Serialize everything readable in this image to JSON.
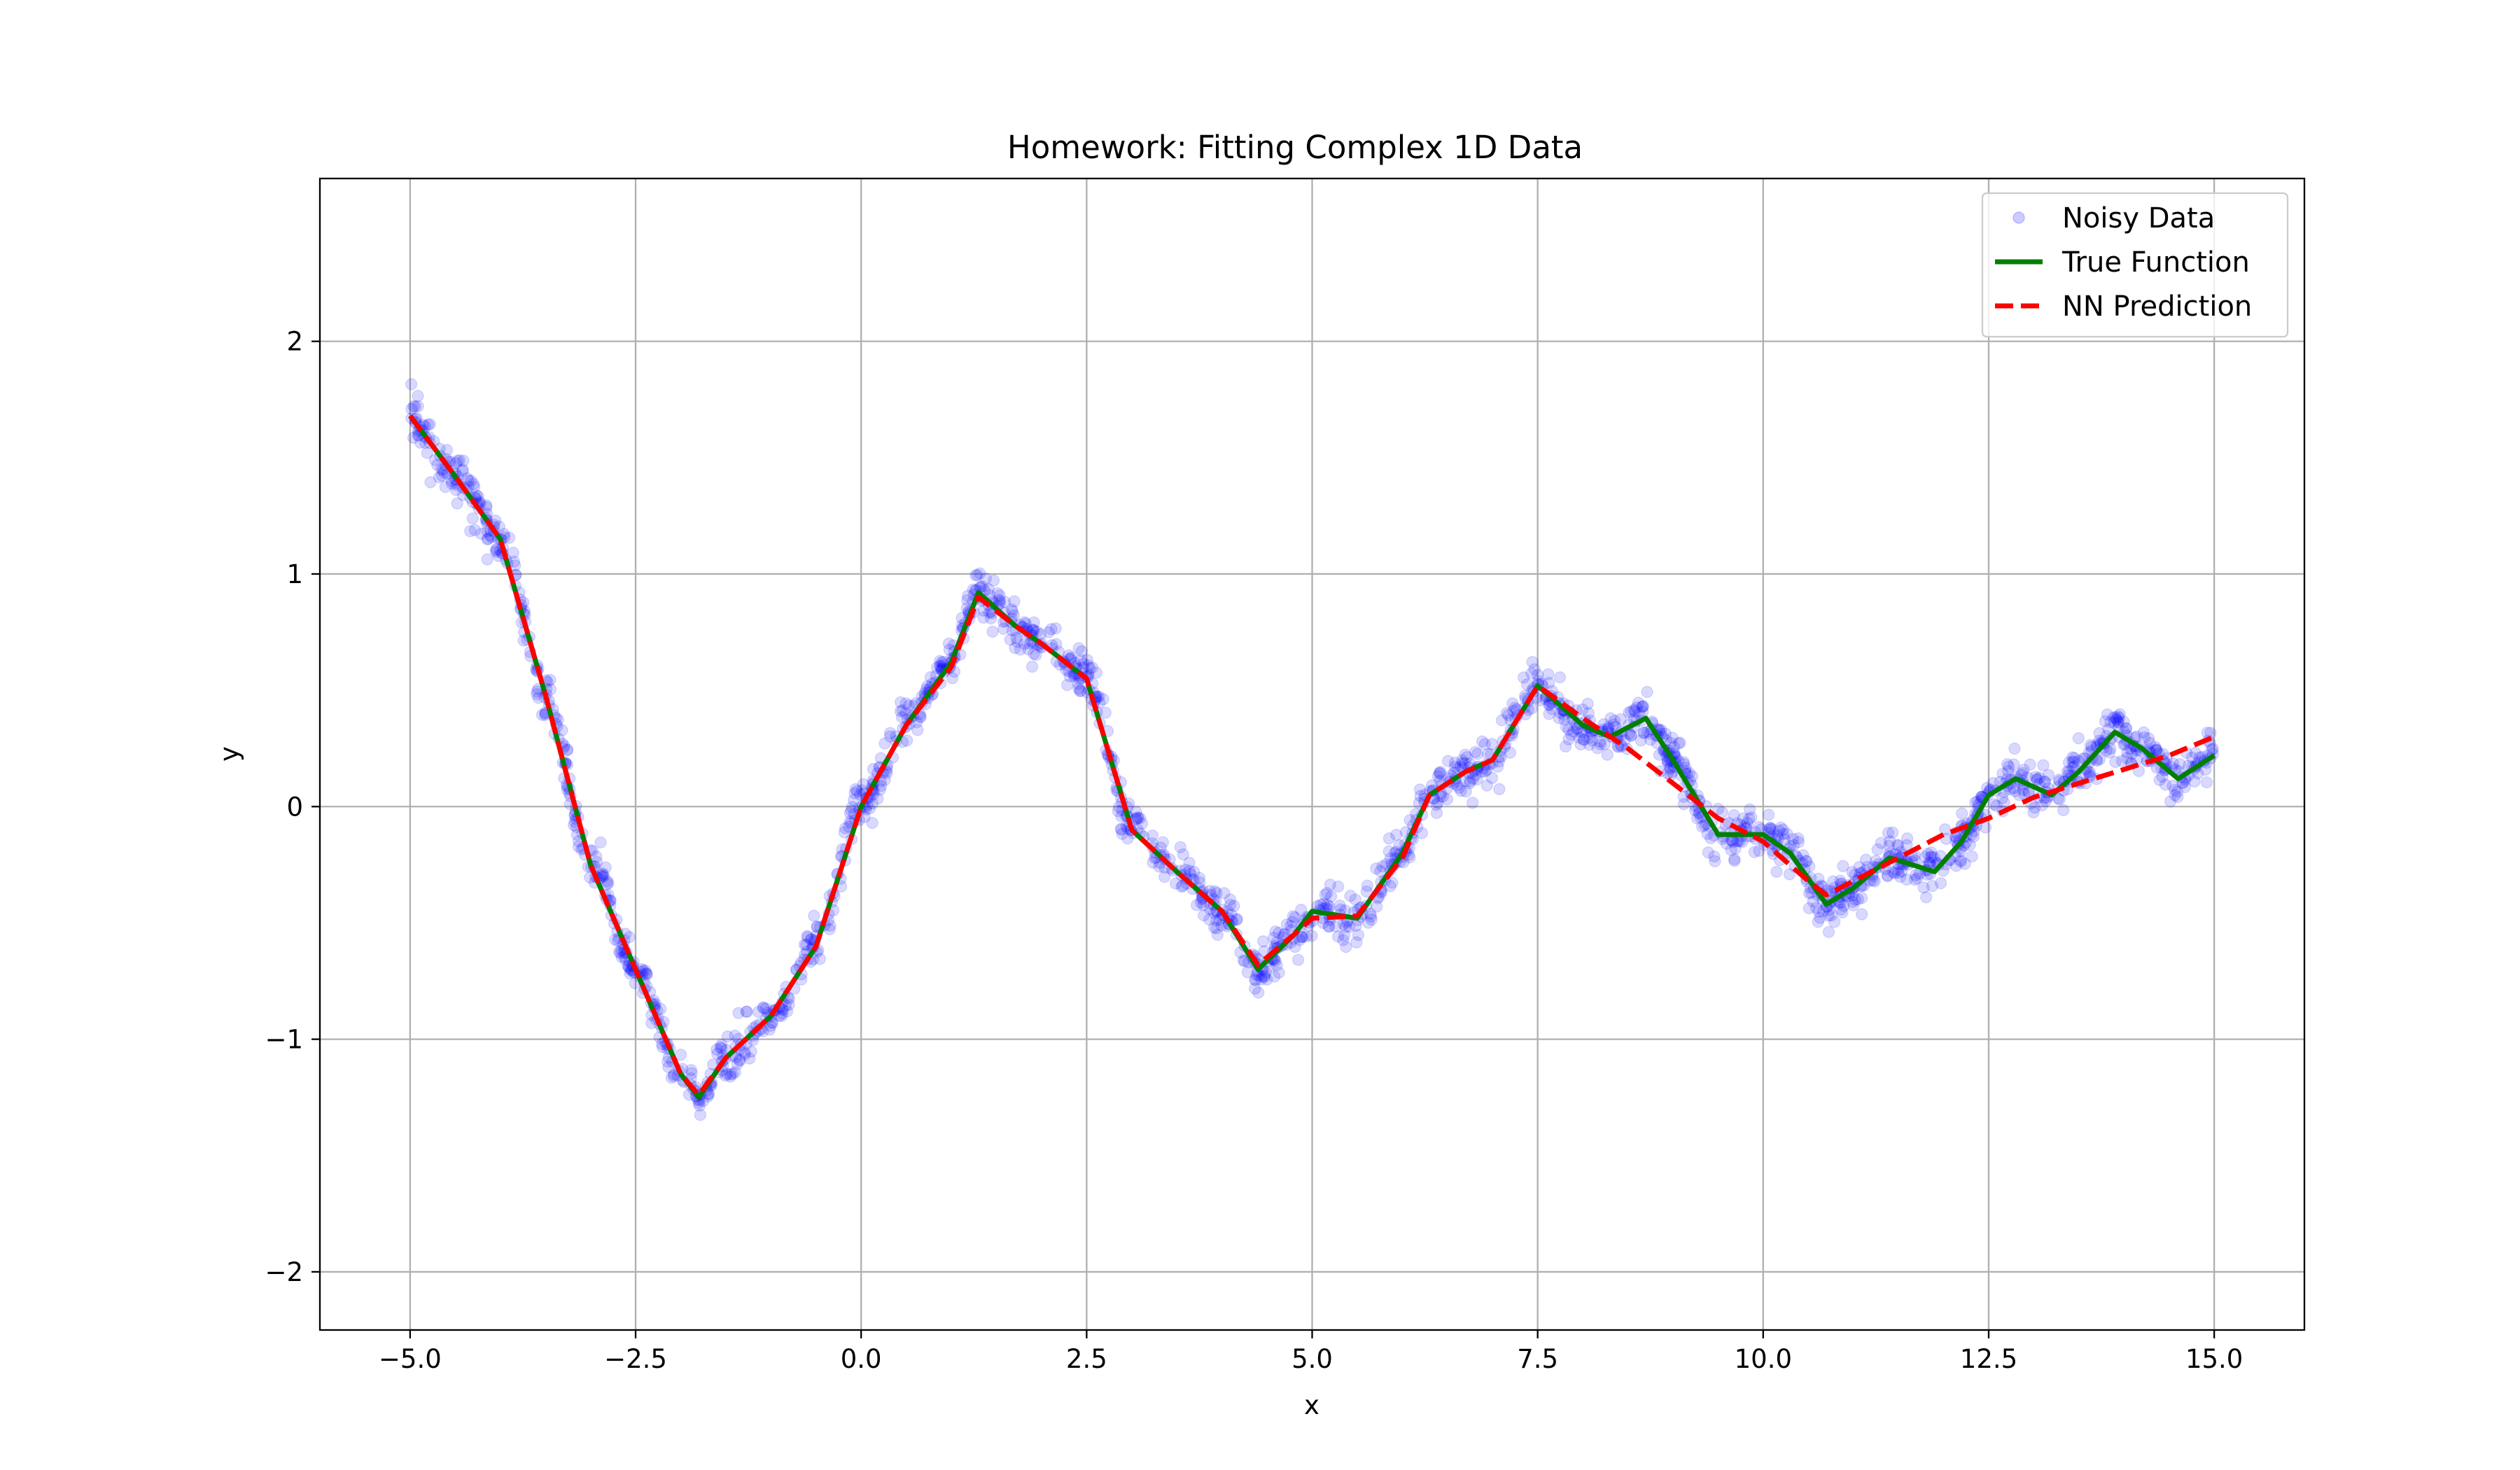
{
  "chart_data": {
    "type": "line",
    "title": "Homework: Fitting Complex 1D Data",
    "xlabel": "x",
    "ylabel": "y",
    "xlim": [
      -6.0,
      16.0
    ],
    "ylim": [
      -2.25,
      2.7
    ],
    "xticks": [
      -5.0,
      -2.5,
      0.0,
      2.5,
      5.0,
      7.5,
      10.0,
      12.5,
      15.0
    ],
    "xtick_labels": [
      "−5.0",
      "−2.5",
      "0.0",
      "2.5",
      "5.0",
      "7.5",
      "10.0",
      "12.5",
      "15.0"
    ],
    "yticks": [
      -2,
      -1,
      0,
      1,
      2
    ],
    "ytick_labels": [
      "−2",
      "−1",
      "0",
      "1",
      "2"
    ],
    "grid": true,
    "legend_position": "top-right",
    "series": [
      {
        "name": "Noisy Data",
        "kind": "scatter",
        "color": "#0000ff",
        "opacity": 0.15,
        "count": 2000,
        "x_range": [
          -5.0,
          15.0
        ],
        "noise_std": 0.05
      },
      {
        "name": "True Function",
        "kind": "line",
        "color": "#008000",
        "style": "solid",
        "x": [
          -5.0,
          -4.5,
          -4.0,
          -3.5,
          -3.0,
          -2.5,
          -2.0,
          -1.8,
          -1.5,
          -1.0,
          -0.5,
          0.0,
          0.5,
          1.0,
          1.3,
          1.7,
          2.0,
          2.5,
          3.0,
          3.5,
          4.0,
          4.4,
          4.8,
          5.0,
          5.5,
          6.0,
          6.3,
          6.7,
          7.0,
          7.5,
          8.0,
          8.3,
          8.7,
          9.0,
          9.5,
          10.0,
          10.3,
          10.7,
          11.0,
          11.4,
          11.9,
          12.2,
          12.5,
          12.8,
          13.2,
          13.5,
          13.9,
          14.2,
          14.6,
          15.0
        ],
        "y": [
          1.68,
          1.42,
          1.15,
          0.48,
          -0.25,
          -0.7,
          -1.15,
          -1.25,
          -1.08,
          -0.9,
          -0.6,
          0.0,
          0.35,
          0.62,
          0.92,
          0.78,
          0.7,
          0.55,
          -0.1,
          -0.28,
          -0.45,
          -0.7,
          -0.55,
          -0.45,
          -0.48,
          -0.2,
          0.05,
          0.15,
          0.2,
          0.52,
          0.35,
          0.3,
          0.38,
          0.2,
          -0.12,
          -0.12,
          -0.2,
          -0.42,
          -0.35,
          -0.22,
          -0.28,
          -0.15,
          0.05,
          0.12,
          0.05,
          0.15,
          0.32,
          0.25,
          0.12,
          0.22
        ]
      },
      {
        "name": "NN Prediction",
        "kind": "line",
        "color": "#ff0000",
        "style": "dashed",
        "x": [
          -5.0,
          -4.5,
          -4.0,
          -3.5,
          -3.0,
          -2.5,
          -2.0,
          -1.8,
          -1.5,
          -1.0,
          -0.5,
          0.0,
          0.5,
          1.0,
          1.3,
          1.7,
          2.0,
          2.5,
          3.0,
          3.5,
          4.0,
          4.4,
          4.8,
          5.0,
          5.5,
          6.0,
          6.3,
          6.7,
          7.0,
          7.5,
          8.0,
          8.5,
          9.0,
          9.5,
          10.0,
          10.5,
          10.7,
          11.0,
          11.5,
          12.0,
          12.5,
          13.0,
          13.5,
          14.0,
          14.5,
          15.0
        ],
        "y": [
          1.68,
          1.42,
          1.15,
          0.48,
          -0.25,
          -0.7,
          -1.15,
          -1.24,
          -1.08,
          -0.9,
          -0.6,
          0.0,
          0.35,
          0.6,
          0.9,
          0.78,
          0.7,
          0.55,
          -0.1,
          -0.28,
          -0.45,
          -0.68,
          -0.55,
          -0.48,
          -0.47,
          -0.22,
          0.05,
          0.15,
          0.2,
          0.52,
          0.38,
          0.25,
          0.1,
          -0.05,
          -0.15,
          -0.32,
          -0.38,
          -0.32,
          -0.22,
          -0.12,
          -0.05,
          0.04,
          0.1,
          0.16,
          0.22,
          0.3
        ]
      }
    ]
  }
}
